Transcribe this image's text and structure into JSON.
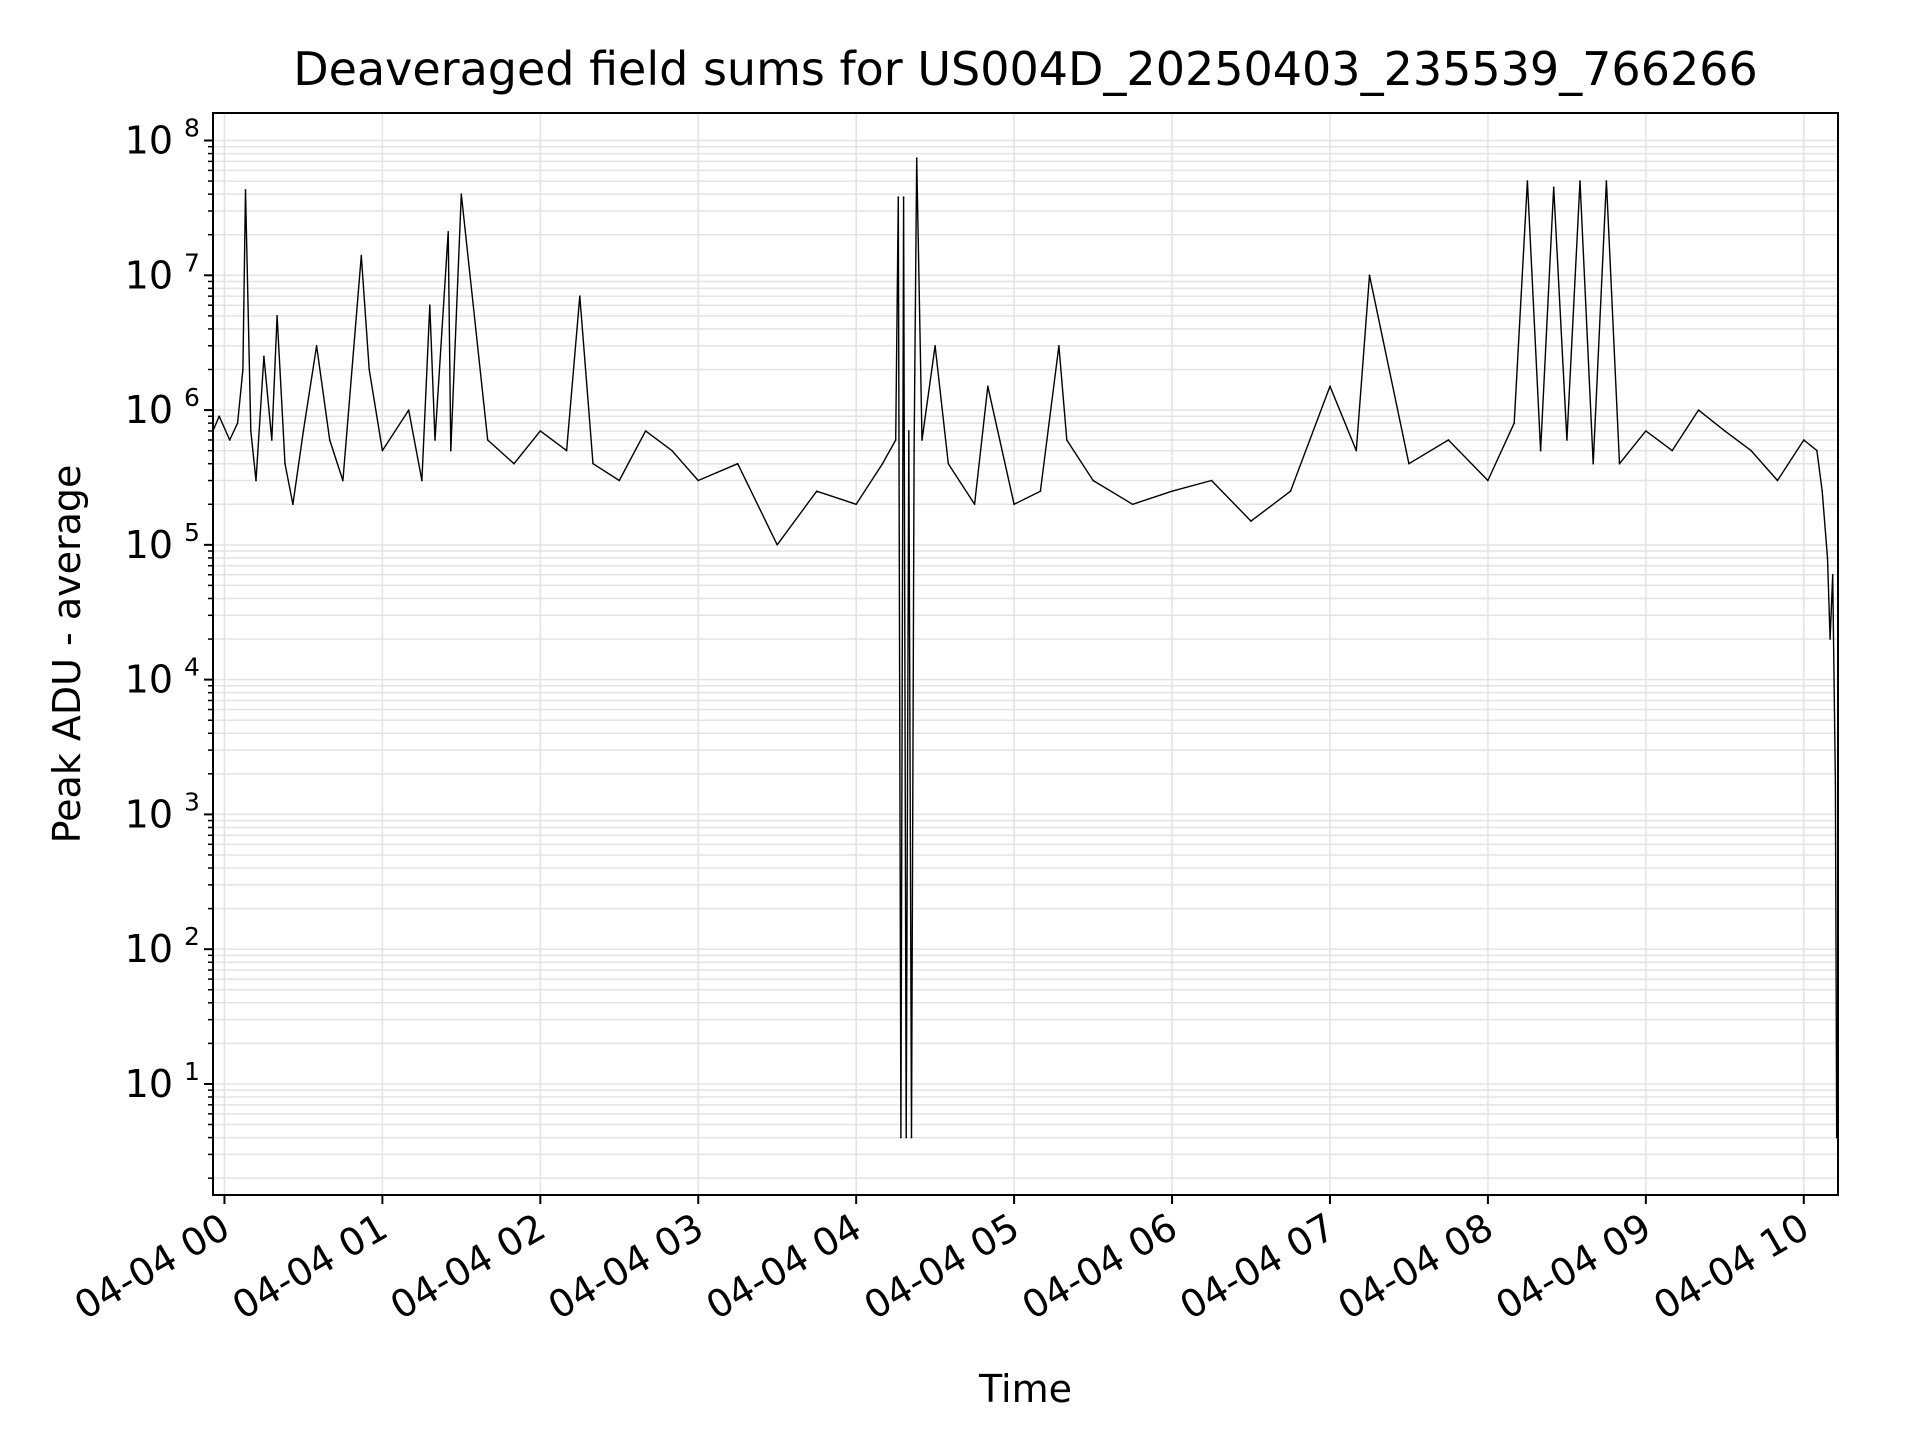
{
  "chart_data": {
    "type": "line",
    "title": "Deaveraged field sums for US004D_20250403_235539_766266",
    "xlabel": "Time",
    "ylabel": "Peak ADU - average",
    "yscale": "log",
    "ylim": [
      1.5,
      160000000
    ],
    "xlim": [
      "2025-04-03 23:55:39",
      "2025-04-04 10:13:00"
    ],
    "x_tick_labels": [
      "04-04 00",
      "04-04 01",
      "04-04 02",
      "04-04 03",
      "04-04 04",
      "04-04 05",
      "04-04 06",
      "04-04 07",
      "04-04 08",
      "04-04 09",
      "04-04 10"
    ],
    "x_tick_times": [
      "2025-04-04 00:00",
      "2025-04-04 01:00",
      "2025-04-04 02:00",
      "2025-04-04 03:00",
      "2025-04-04 04:00",
      "2025-04-04 05:00",
      "2025-04-04 06:00",
      "2025-04-04 07:00",
      "2025-04-04 08:00",
      "2025-04-04 09:00",
      "2025-04-04 10:00"
    ],
    "y_ticks": [
      {
        "base": "10",
        "exp": "1",
        "value": 10
      },
      {
        "base": "10",
        "exp": "2",
        "value": 100
      },
      {
        "base": "10",
        "exp": "3",
        "value": 1000
      },
      {
        "base": "10",
        "exp": "4",
        "value": 10000
      },
      {
        "base": "10",
        "exp": "5",
        "value": 100000
      },
      {
        "base": "10",
        "exp": "6",
        "value": 1000000
      },
      {
        "base": "10",
        "exp": "7",
        "value": 10000000
      },
      {
        "base": "10",
        "exp": "8",
        "value": 100000000
      }
    ],
    "grid": true,
    "line_color": "#000000",
    "grid_color": "#e3e3e3",
    "series": [
      {
        "x": [
          "2025-04-03 23:55:39",
          "2025-04-03 23:58",
          "2025-04-04 00:02",
          "2025-04-04 00:05",
          "2025-04-04 00:07",
          "2025-04-04 00:08",
          "2025-04-04 00:10",
          "2025-04-04 00:12",
          "2025-04-04 00:15",
          "2025-04-04 00:18",
          "2025-04-04 00:20",
          "2025-04-04 00:23",
          "2025-04-04 00:26",
          "2025-04-04 00:30",
          "2025-04-04 00:35",
          "2025-04-04 00:40",
          "2025-04-04 00:45",
          "2025-04-04 00:52",
          "2025-04-04 00:55",
          "2025-04-04 01:00",
          "2025-04-04 01:10",
          "2025-04-04 01:15",
          "2025-04-04 01:18",
          "2025-04-04 01:20",
          "2025-04-04 01:25",
          "2025-04-04 01:26",
          "2025-04-04 01:30",
          "2025-04-04 01:40",
          "2025-04-04 01:50",
          "2025-04-04 02:00",
          "2025-04-04 02:10",
          "2025-04-04 02:15",
          "2025-04-04 02:20",
          "2025-04-04 02:30",
          "2025-04-04 02:40",
          "2025-04-04 02:50",
          "2025-04-04 03:00",
          "2025-04-04 03:15",
          "2025-04-04 03:30",
          "2025-04-04 03:45",
          "2025-04-04 04:00",
          "2025-04-04 04:10",
          "2025-04-04 04:15",
          "2025-04-04 04:16",
          "2025-04-04 04:17",
          "2025-04-04 04:18",
          "2025-04-04 04:19",
          "2025-04-04 04:20",
          "2025-04-04 04:21",
          "2025-04-04 04:22",
          "2025-04-04 04:23",
          "2025-04-04 04:25",
          "2025-04-04 04:30",
          "2025-04-04 04:35",
          "2025-04-04 04:45",
          "2025-04-04 04:50",
          "2025-04-04 05:00",
          "2025-04-04 05:10",
          "2025-04-04 05:17",
          "2025-04-04 05:20",
          "2025-04-04 05:30",
          "2025-04-04 05:45",
          "2025-04-04 06:00",
          "2025-04-04 06:15",
          "2025-04-04 06:30",
          "2025-04-04 06:45",
          "2025-04-04 07:00",
          "2025-04-04 07:10",
          "2025-04-04 07:15",
          "2025-04-04 07:30",
          "2025-04-04 07:45",
          "2025-04-04 08:00",
          "2025-04-04 08:10",
          "2025-04-04 08:15",
          "2025-04-04 08:20",
          "2025-04-04 08:25",
          "2025-04-04 08:30",
          "2025-04-04 08:35",
          "2025-04-04 08:40",
          "2025-04-04 08:45",
          "2025-04-04 08:50",
          "2025-04-04 09:00",
          "2025-04-04 09:10",
          "2025-04-04 09:20",
          "2025-04-04 09:30",
          "2025-04-04 09:40",
          "2025-04-04 09:50",
          "2025-04-04 10:00",
          "2025-04-04 10:05",
          "2025-04-04 10:07",
          "2025-04-04 10:09",
          "2025-04-04 10:10",
          "2025-04-04 10:11",
          "2025-04-04 10:12",
          "2025-04-04 10:12:30"
        ],
        "y": [
          700000,
          900000,
          600000,
          800000,
          2000000,
          43000000,
          700000,
          300000,
          2500000,
          600000,
          5000000,
          400000,
          200000,
          700000,
          3000000,
          600000,
          300000,
          14000000,
          2000000,
          500000,
          1000000,
          300000,
          6000000,
          600000,
          21000000,
          500000,
          40000000,
          600000,
          400000,
          700000,
          500000,
          7000000,
          400000,
          300000,
          700000,
          500000,
          300000,
          400000,
          100000,
          250000,
          200000,
          400000,
          600000,
          38000000,
          4,
          38000000,
          4,
          700000,
          4,
          500000,
          74000000,
          600000,
          3000000,
          400000,
          200000,
          1500000,
          200000,
          250000,
          3000000,
          600000,
          300000,
          200000,
          250000,
          300000,
          150000,
          250000,
          1500000,
          500000,
          10000000,
          400000,
          600000,
          300000,
          800000,
          50000000,
          500000,
          45000000,
          600000,
          50000000,
          400000,
          50000000,
          400000,
          700000,
          500000,
          1000000,
          700000,
          500000,
          300000,
          600000,
          500000,
          250000,
          80000,
          20000,
          60000,
          1700,
          4
        ]
      }
    ]
  }
}
